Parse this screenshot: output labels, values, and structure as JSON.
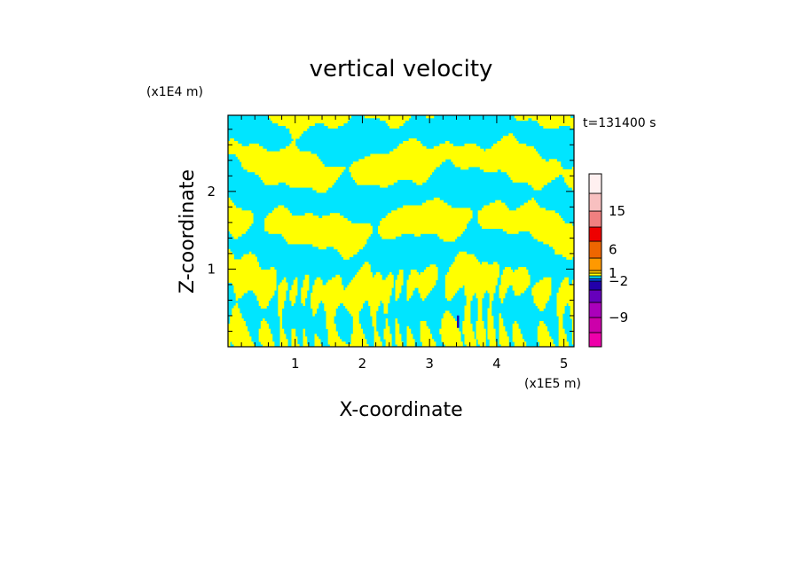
{
  "chart_data": {
    "type": "heatmap",
    "title": "vertical velocity",
    "xlabel": "X-coordinate",
    "ylabel": "Z-coordinate",
    "x_unit": "(x1E5 m)",
    "y_unit": "(x1E4 m)",
    "time_label": "t=131400 s",
    "xlim": [
      0,
      5.15
    ],
    "ylim": [
      0,
      2.98
    ],
    "x_ticks": [
      1,
      2,
      3,
      4,
      5
    ],
    "y_ticks": [
      1,
      2
    ],
    "colorbar": {
      "tick_labels": [
        "15",
        "6",
        "1",
        "−2",
        "−9"
      ],
      "tick_values": [
        15,
        6,
        1,
        -2,
        -9
      ],
      "levels": [
        {
          "range": [
            -15,
            -12
          ],
          "color": "#ee00aa"
        },
        {
          "range": [
            -12,
            -9
          ],
          "color": "#cc00aa"
        },
        {
          "range": [
            -9,
            -6
          ],
          "color": "#aa00bb"
        },
        {
          "range": [
            -6,
            -4
          ],
          "color": "#6600bb"
        },
        {
          "range": [
            -4,
            -2
          ],
          "color": "#2200aa"
        },
        {
          "range": [
            -2,
            -1
          ],
          "color": "#0055ee"
        },
        {
          "range": [
            -1,
            0
          ],
          "color": "#00e5ff"
        },
        {
          "range": [
            0,
            1
          ],
          "color": "#ffff00"
        },
        {
          "range": [
            1,
            2
          ],
          "color": "#ffcc00"
        },
        {
          "range": [
            2,
            4
          ],
          "color": "#ff9900"
        },
        {
          "range": [
            4,
            8
          ],
          "color": "#ee6600"
        },
        {
          "range": [
            8,
            12
          ],
          "color": "#ee0000"
        },
        {
          "range": [
            12,
            15
          ],
          "color": "#f08080"
        },
        {
          "range": [
            15,
            20
          ],
          "color": "#f8c0c0"
        },
        {
          "range": [
            20,
            30
          ],
          "color": "#fff0f0"
        }
      ]
    },
    "field": {
      "description_colors": [
        "#00e5ff",
        "#ffff00"
      ],
      "grid_cols": 180,
      "grid_rows": 90,
      "extreme_spot": {
        "x": 3.42,
        "z": 0.3,
        "color": "#2200aa"
      }
    }
  }
}
